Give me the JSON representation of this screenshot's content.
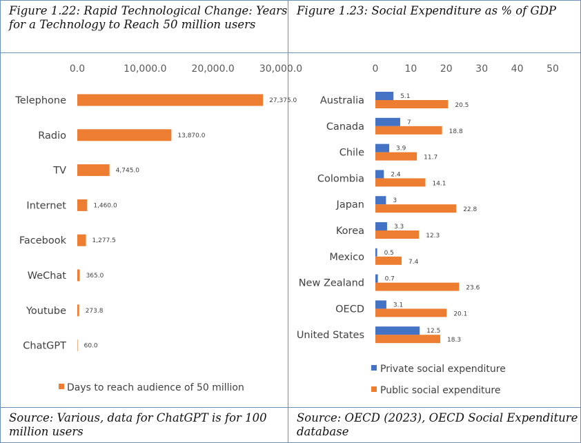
{
  "left_panel": {
    "caption": "Figure 1.22: Rapid Technological Change: Years for a Technology to Reach 50 million users",
    "source": "Source: Various, data for ChatGPT is for 100 million users"
  },
  "right_panel": {
    "caption": "Figure 1.23: Social Expenditure as % of GDP",
    "source": "Source: OECD (2023), OECD Social Expenditure database"
  },
  "chart_data": [
    {
      "type": "bar",
      "orientation": "horizontal",
      "categories": [
        "Telephone",
        "Radio",
        "TV",
        "Internet",
        "Facebook",
        "WeChat",
        "Youtube",
        "ChatGPT"
      ],
      "series": [
        {
          "name": "Days to reach audience of 50 million",
          "color": "#ed7d31",
          "values": [
            27375.0,
            13870.0,
            4745.0,
            1460.0,
            1277.5,
            365.0,
            273.8,
            60.0
          ],
          "labels": [
            "27,375.0",
            "13,870.0",
            "4,745.0",
            "1,460.0",
            "1,277.5",
            "365.0",
            "273.8",
            "60.0"
          ]
        }
      ],
      "xlim": [
        0,
        30000
      ],
      "xticks": [
        0,
        10000,
        20000,
        30000
      ],
      "xtick_labels": [
        "0.0",
        "10,000.0",
        "20,000.0",
        "30,000.0"
      ],
      "axis_position": "top",
      "grid": false,
      "legend": "bottom"
    },
    {
      "type": "bar",
      "orientation": "horizontal",
      "categories": [
        "Australia",
        "Canada",
        "Chile",
        "Colombia",
        "Japan",
        "Korea",
        "Mexico",
        "New Zealand",
        "OECD",
        "United States"
      ],
      "series": [
        {
          "name": "Private social expenditure",
          "color": "#4472c4",
          "values": [
            5.1,
            7,
            3.9,
            2.4,
            3,
            3.3,
            0.5,
            0.7,
            3.1,
            12.5
          ]
        },
        {
          "name": "Public social expenditure",
          "color": "#ed7d31",
          "values": [
            20.5,
            18.8,
            11.7,
            14.1,
            22.8,
            12.3,
            7.4,
            23.6,
            20.1,
            18.3
          ]
        }
      ],
      "xlim": [
        0,
        50
      ],
      "xticks": [
        0,
        10,
        20,
        30,
        40,
        50
      ],
      "axis_position": "top",
      "grid": false,
      "legend": "bottom"
    }
  ]
}
